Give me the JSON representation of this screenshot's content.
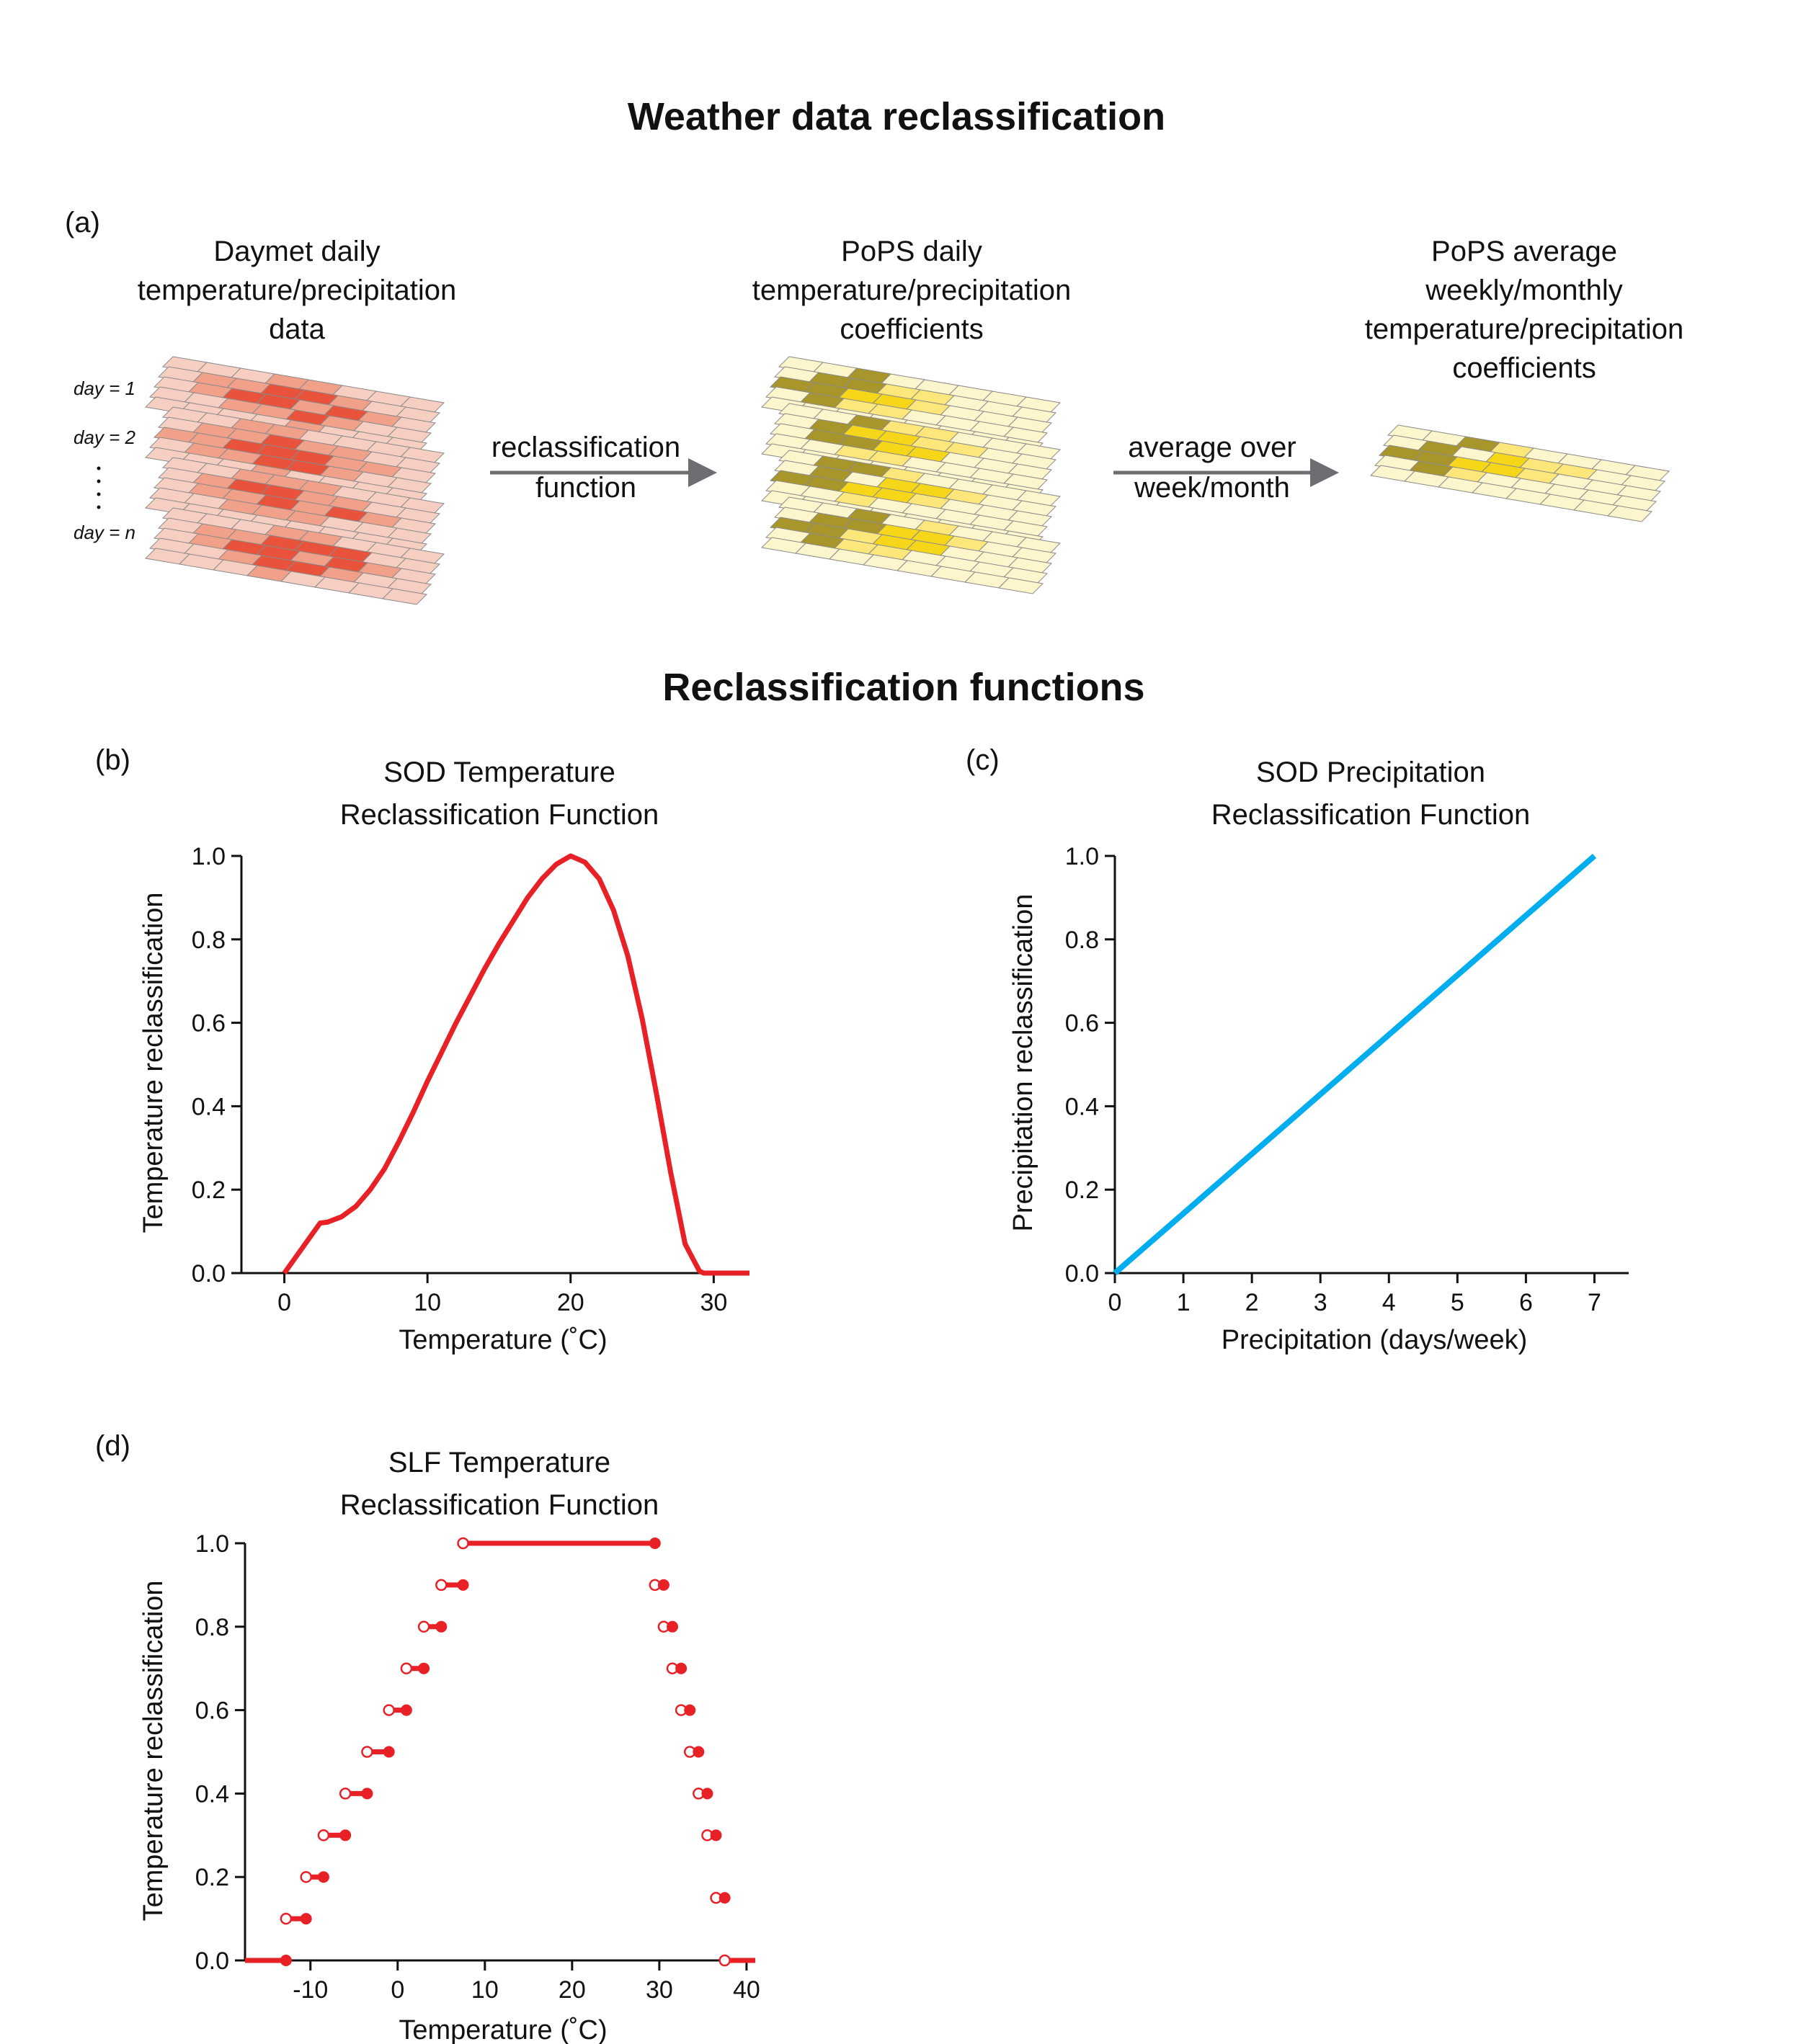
{
  "headings": {
    "top": "Weather data reclassification",
    "bottom": "Reclassification functions"
  },
  "panel_a": {
    "label": "(a)",
    "col1": [
      "Daymet daily",
      "temperature/precipitation",
      "data"
    ],
    "col2": [
      "PoPS daily",
      "temperature/precipitation",
      "coefficients"
    ],
    "col3": [
      "PoPS average",
      "weekly/monthly",
      "temperature/precipitation",
      "coefficients"
    ],
    "arrow1": [
      "reclassification",
      "function"
    ],
    "arrow2": [
      "average over",
      "week/month"
    ],
    "day_labels": [
      "day = 1",
      "day = 2",
      "day = n"
    ],
    "colors": {
      "red_light": "#f6cfc2",
      "red_mid": "#f1a08a",
      "red_dark": "#e9523b",
      "yel_light": "#fdf5cc",
      "yel_mid": "#fde77a",
      "yel_dark": "#f5d619",
      "olive": "#a8962b",
      "arrow": "#6d6e71"
    }
  },
  "chart_data": [
    {
      "id": "b",
      "panel_label": "(b)",
      "type": "line",
      "title": [
        "SOD Temperature",
        "Reclassification Function"
      ],
      "xlabel": "Temperature (˚C)",
      "ylabel": "Temperature reclassification",
      "xlim": [
        -3,
        32.5
      ],
      "ylim": [
        0,
        1
      ],
      "xticks": [
        0,
        10,
        20,
        30
      ],
      "yticks": [
        "0.0",
        "0.2",
        "0.4",
        "0.6",
        "0.8",
        "1.0"
      ],
      "color": "#e82127",
      "series": [
        {
          "x": [
            0,
            2.5,
            3,
            4,
            5,
            6,
            7,
            8,
            9,
            10,
            11,
            12,
            13,
            14,
            15,
            16,
            17,
            18,
            19,
            20,
            21,
            22,
            23,
            24,
            25,
            26,
            27,
            28,
            29,
            29.3,
            32.5
          ],
          "y": [
            0,
            0.12,
            0.122,
            0.135,
            0.16,
            0.2,
            0.25,
            0.315,
            0.385,
            0.46,
            0.53,
            0.6,
            0.665,
            0.73,
            0.79,
            0.845,
            0.9,
            0.945,
            0.98,
            1.0,
            0.985,
            0.945,
            0.87,
            0.76,
            0.61,
            0.43,
            0.24,
            0.07,
            0.005,
            0,
            0
          ]
        }
      ]
    },
    {
      "id": "c",
      "panel_label": "(c)",
      "type": "line",
      "title": [
        "SOD Precipitation",
        "Reclassification Function"
      ],
      "xlabel": "Precipitation (days/week)",
      "ylabel": "Precipitation reclassification",
      "xlim": [
        0,
        7.5
      ],
      "ylim": [
        0,
        1
      ],
      "xticks": [
        0,
        1,
        2,
        3,
        4,
        5,
        6,
        7
      ],
      "yticks": [
        "0.0",
        "0.2",
        "0.4",
        "0.6",
        "0.8",
        "1.0"
      ],
      "color": "#00aeef",
      "series": [
        {
          "x": [
            0,
            7
          ],
          "y": [
            0,
            1
          ]
        }
      ]
    },
    {
      "id": "d",
      "panel_label": "(d)",
      "type": "step",
      "title": [
        "SLF Temperature",
        "Reclassification Function"
      ],
      "xlabel": "Temperature (˚C)",
      "ylabel": "Temperature reclassification",
      "xlim": [
        -17.5,
        41
      ],
      "ylim": [
        0,
        1
      ],
      "xticks": [
        -10,
        0,
        10,
        20,
        30,
        40
      ],
      "yticks": [
        "0.0",
        "0.2",
        "0.4",
        "0.6",
        "0.8",
        "1.0"
      ],
      "color": "#e82127",
      "segments": [
        {
          "x0": -17.5,
          "x1": -12.8,
          "y": 0,
          "open": "none",
          "closed": "right"
        },
        {
          "x0": -12.8,
          "x1": -10.5,
          "y": 0.1,
          "open": "left",
          "closed": "right"
        },
        {
          "x0": -10.5,
          "x1": -8.5,
          "y": 0.2,
          "open": "left",
          "closed": "right"
        },
        {
          "x0": -8.5,
          "x1": -6.0,
          "y": 0.3,
          "open": "left",
          "closed": "right"
        },
        {
          "x0": -6.0,
          "x1": -3.5,
          "y": 0.4,
          "open": "left",
          "closed": "right"
        },
        {
          "x0": -3.5,
          "x1": -1.0,
          "y": 0.5,
          "open": "left",
          "closed": "right"
        },
        {
          "x0": -1.0,
          "x1": 1.0,
          "y": 0.6,
          "open": "left",
          "closed": "right"
        },
        {
          "x0": 1.0,
          "x1": 3.0,
          "y": 0.7,
          "open": "left",
          "closed": "right"
        },
        {
          "x0": 3.0,
          "x1": 5.0,
          "y": 0.8,
          "open": "left",
          "closed": "right"
        },
        {
          "x0": 5.0,
          "x1": 7.5,
          "y": 0.9,
          "open": "left",
          "closed": "right"
        },
        {
          "x0": 7.5,
          "x1": 29.5,
          "y": 1.0,
          "open": "left",
          "closed": "right"
        },
        {
          "x0": 29.5,
          "x1": 30.5,
          "y": 0.9,
          "open": "left",
          "closed": "right"
        },
        {
          "x0": 30.5,
          "x1": 31.5,
          "y": 0.8,
          "open": "left",
          "closed": "right"
        },
        {
          "x0": 31.5,
          "x1": 32.5,
          "y": 0.7,
          "open": "left",
          "closed": "right"
        },
        {
          "x0": 32.5,
          "x1": 33.5,
          "y": 0.6,
          "open": "left",
          "closed": "right"
        },
        {
          "x0": 33.5,
          "x1": 34.5,
          "y": 0.5,
          "open": "left",
          "closed": "right"
        },
        {
          "x0": 34.5,
          "x1": 35.5,
          "y": 0.4,
          "open": "left",
          "closed": "right"
        },
        {
          "x0": 35.5,
          "x1": 36.5,
          "y": 0.3,
          "open": "left",
          "closed": "right"
        },
        {
          "x0": 36.5,
          "x1": 37.5,
          "y": 0.15,
          "open": "left",
          "closed": "right"
        },
        {
          "x0": 37.5,
          "x1": 41,
          "y": 0,
          "open": "left",
          "closed": "none"
        }
      ]
    }
  ]
}
